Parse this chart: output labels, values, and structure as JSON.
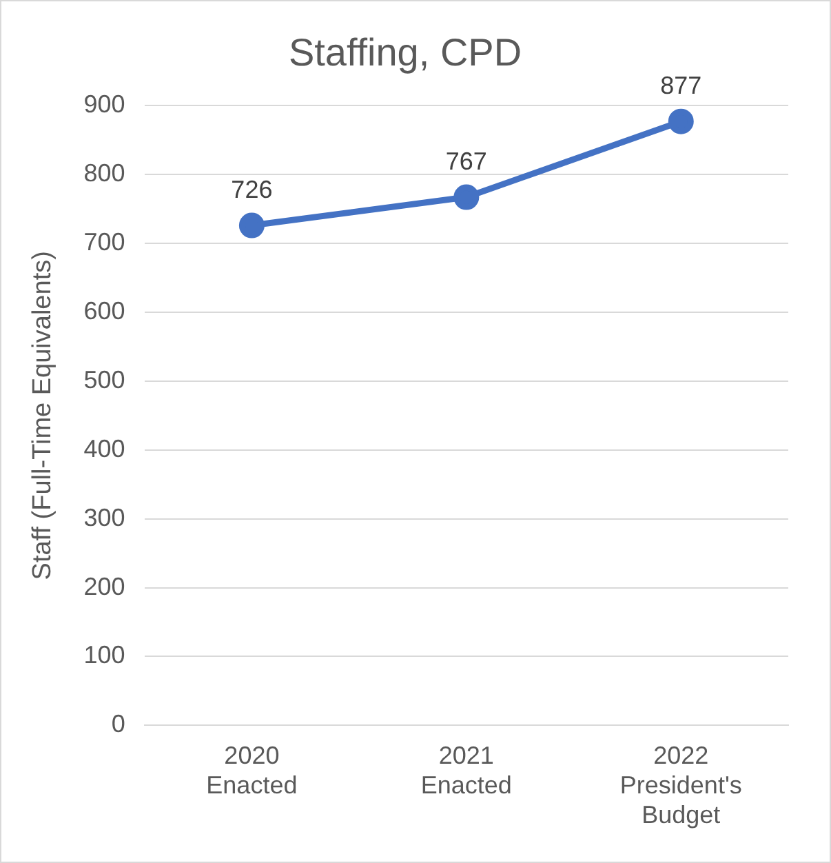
{
  "chart_data": {
    "type": "line",
    "title": "Staffing, CPD",
    "ylabel": "Staff (Full-Time Equivalents)",
    "categories": [
      "2020 Enacted",
      "2021 Enacted",
      "2022 President's Budget"
    ],
    "series": [
      {
        "color": "#4472c4",
        "values": [
          726,
          767,
          877
        ]
      }
    ],
    "ylim": [
      0,
      900
    ],
    "yticks": [
      0,
      100,
      200,
      300,
      400,
      500,
      600,
      700,
      800,
      900
    ],
    "grid": "y",
    "legend": false,
    "marker": "circle",
    "line_style": "solid",
    "data_labels": true
  }
}
